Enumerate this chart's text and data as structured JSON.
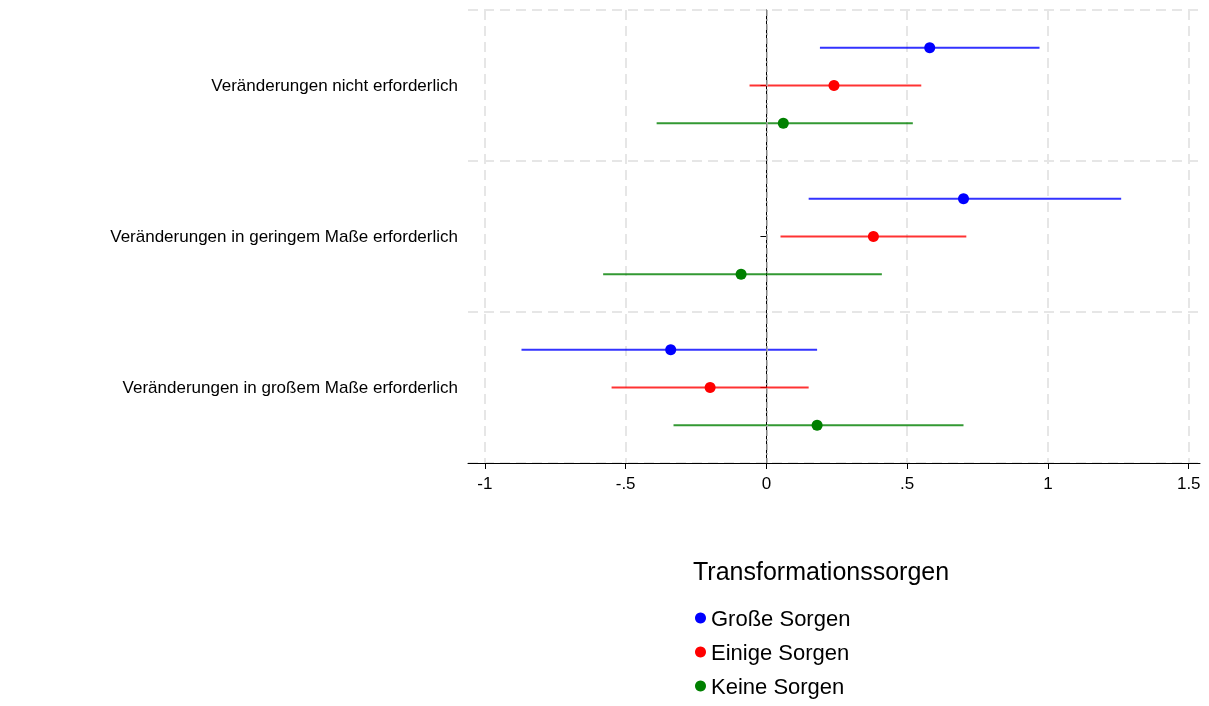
{
  "chart_data": {
    "type": "scatter",
    "orientation": "horizontal",
    "legend_title": "Transformationssorgen",
    "categories": [
      "Veränderungen nicht erforderlich",
      "Veränderungen in geringem Maße erforderlich",
      "Veränderungen in großem Maße erforderlich"
    ],
    "series": [
      {
        "name": "Große Sorgen",
        "color": "#0000ff",
        "values": [
          0.58,
          0.7,
          -0.34
        ],
        "errors": [
          [
            0.19,
            0.97
          ],
          [
            0.15,
            1.26
          ],
          [
            -0.87,
            0.18
          ]
        ]
      },
      {
        "name": "Einige Sorgen",
        "color": "#ff0000",
        "values": [
          0.24,
          0.38,
          -0.2
        ],
        "errors": [
          [
            -0.06,
            0.55
          ],
          [
            0.05,
            0.71
          ],
          [
            -0.55,
            0.15
          ]
        ]
      },
      {
        "name": "Keine Sorgen",
        "color": "#008000",
        "values": [
          0.06,
          -0.09,
          0.18
        ],
        "errors": [
          [
            -0.39,
            0.52
          ],
          [
            -0.58,
            0.41
          ],
          [
            -0.33,
            0.7
          ]
        ]
      }
    ],
    "xlim": [
      -1.06,
      1.54
    ],
    "xticks": [
      -1,
      {
        "value": -0.5,
        "label": "-.5"
      },
      0,
      {
        "value": 0.5,
        "label": ".5"
      },
      1,
      1.5
    ],
    "ref_lines": [
      {
        "axis": "x",
        "value": 0,
        "label": null,
        "color": "#b0b0b0",
        "line_style": "dashdot"
      }
    ],
    "grid": "x",
    "legend": "bottom",
    "marker": "circle"
  }
}
